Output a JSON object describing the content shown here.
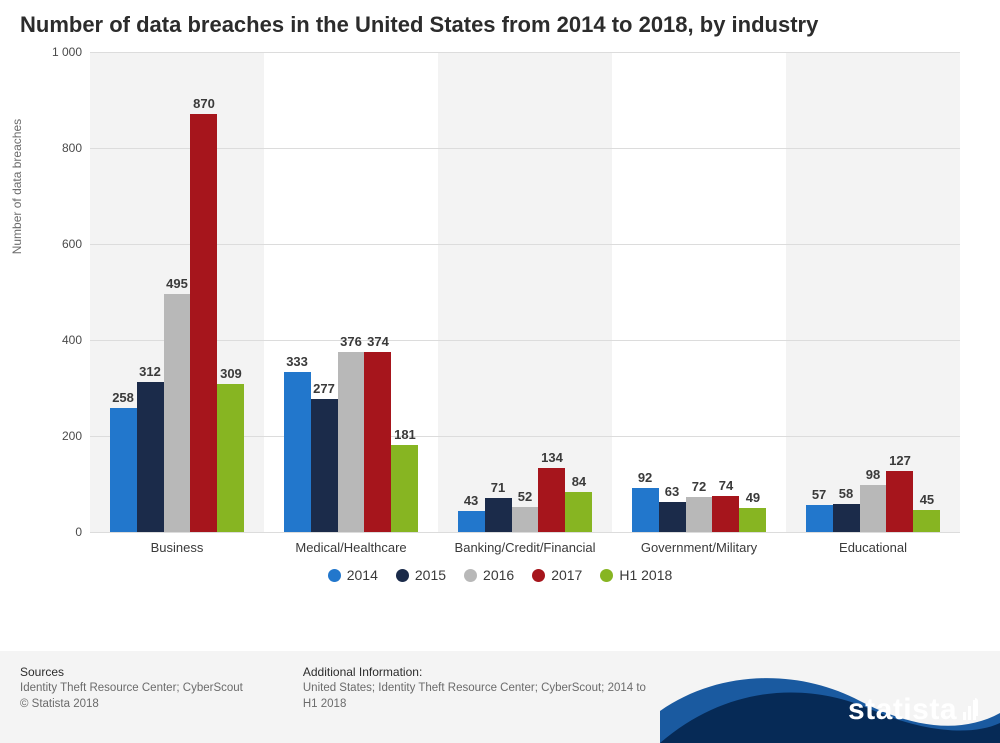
{
  "title": "Number of data breaches in the United States from 2014 to 2018, by industry",
  "chart": {
    "type": "bar",
    "ylabel": "Number of data breaches",
    "ylim": [
      0,
      1000
    ],
    "yticks": [
      0,
      200,
      400,
      600,
      800,
      1000
    ],
    "ytick_labels": [
      "0",
      "200",
      "400",
      "600",
      "800",
      "1 000"
    ],
    "categories": [
      "Business",
      "Medical/Healthcare",
      "Banking/Credit/Financial",
      "Government/Military",
      "Educational"
    ],
    "series": [
      {
        "name": "2014",
        "color": "#2277cc"
      },
      {
        "name": "2015",
        "color": "#1b2b4a"
      },
      {
        "name": "2016",
        "color": "#b8b8b8"
      },
      {
        "name": "2017",
        "color": "#a6151c"
      },
      {
        "name": "H1 2018",
        "color": "#87b522"
      }
    ],
    "values": [
      [
        258,
        312,
        495,
        870,
        309
      ],
      [
        333,
        277,
        376,
        374,
        181
      ],
      [
        43,
        71,
        52,
        134,
        84
      ],
      [
        92,
        63,
        72,
        74,
        49
      ],
      [
        57,
        58,
        98,
        127,
        45
      ]
    ],
    "background_color": "#ffffff",
    "band_color": "#f3f3f3",
    "grid_color": "#dcdcdc",
    "label_fontsize": 13,
    "title_fontsize": 22,
    "bar_width_ratio": 0.155,
    "group_padding_ratio": 0.1
  },
  "footer": {
    "sources_head": "Sources",
    "sources_text": "Identity Theft Resource Center; CyberScout\n© Statista 2018",
    "addl_head": "Additional Information:",
    "addl_text": "United States; Identity Theft Resource Center; CyberScout; 2014 to H1 2018",
    "brand": "statista",
    "wave_dark": "#062a56",
    "wave_light": "#1a5aa0"
  }
}
